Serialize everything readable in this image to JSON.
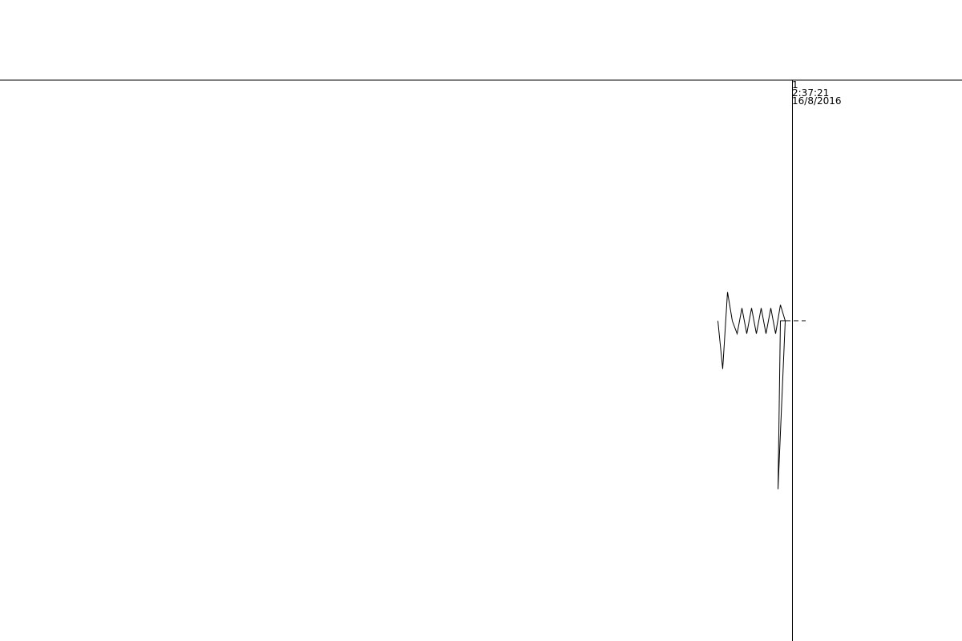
{
  "chart_data": {
    "type": "line",
    "title": "",
    "xlabel": "",
    "ylabel": "",
    "baseline_value": 0,
    "ylim": [
      -6,
      10
    ],
    "x": [
      0,
      1,
      2,
      3,
      4,
      5,
      6,
      7,
      8,
      9,
      10,
      11,
      12,
      13,
      14,
      15,
      16,
      17,
      18,
      19,
      20,
      21
    ],
    "xlim": [
      0,
      30
    ],
    "series": [
      {
        "values": [
          0,
          -1.5,
          0.9,
          0,
          -0.4,
          0.4,
          -0.4,
          0.4,
          -0.4,
          0.4,
          -0.4,
          0.4,
          -0.4,
          0.5,
          0,
          -5.25,
          0,
          0,
          0,
          0,
          0,
          0
        ],
        "color": "#000000"
      }
    ],
    "cursor": {
      "value": "1",
      "time": "2:37:21",
      "date": "16/8/2016"
    }
  },
  "colors": {
    "line": "#000000",
    "axis": "#000000",
    "background": "#ffffff"
  }
}
